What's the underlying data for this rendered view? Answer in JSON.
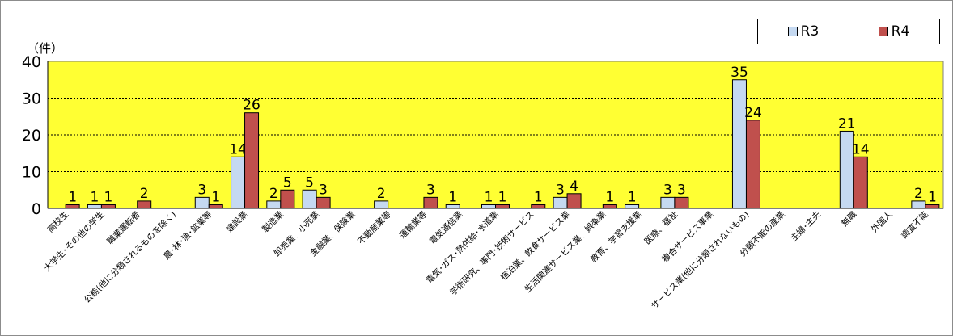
{
  "chart_data": {
    "type": "bar",
    "title": "",
    "ylabel": "（件）",
    "xlabel": "",
    "ylim": [
      0,
      40
    ],
    "yticks": [
      0,
      10,
      20,
      30,
      40
    ],
    "grid": true,
    "legend_position": "top-right",
    "plot_background": "#ffff33",
    "categories": [
      "高校生",
      "大学生･その他の学生",
      "職業運転者",
      "公務(他に分類されるものを除く)",
      "農･林･漁･鉱業等",
      "建設業",
      "製造業",
      "卸売業、小売業",
      "金融業、保険業",
      "不動産業等",
      "運輸業等",
      "電気通信業",
      "電気･ガス･熱供給･水道業",
      "学術研究、専門･技術サービス",
      "宿泊業、飲食サービス業",
      "生活関連サービス業、娯楽業",
      "教育、学習支援業",
      "医療、福祉",
      "複合サービス事業",
      "サービス業(他に分類されないもの)",
      "分類不能の産業",
      "主婦･主夫",
      "無職",
      "外国人",
      "調査不能"
    ],
    "series": [
      {
        "name": "R3",
        "color": "#c5d9f1",
        "values": [
          0,
          1,
          0,
          0,
          3,
          14,
          2,
          5,
          0,
          2,
          0,
          1,
          1,
          0,
          3,
          0,
          1,
          3,
          0,
          35,
          0,
          0,
          21,
          0,
          2
        ]
      },
      {
        "name": "R4",
        "color": "#c0504d",
        "values": [
          1,
          1,
          2,
          0,
          1,
          26,
          5,
          3,
          0,
          0,
          3,
          0,
          1,
          1,
          4,
          1,
          0,
          3,
          0,
          24,
          0,
          0,
          14,
          0,
          1
        ]
      }
    ],
    "data_labels": [
      [
        null,
        "1",
        null,
        null,
        "3",
        "14",
        "2",
        "5",
        null,
        "2",
        null,
        "1",
        "1",
        null,
        "3",
        null,
        "1",
        "3",
        null,
        "35",
        null,
        null,
        "21",
        null,
        "2"
      ],
      [
        "1",
        "1",
        "2",
        null,
        "1",
        "26",
        "5",
        "3",
        null,
        null,
        "3",
        null,
        "1",
        "1",
        "4",
        "1",
        null,
        "3",
        null,
        "24",
        null,
        null,
        "14",
        null,
        "1"
      ]
    ]
  }
}
